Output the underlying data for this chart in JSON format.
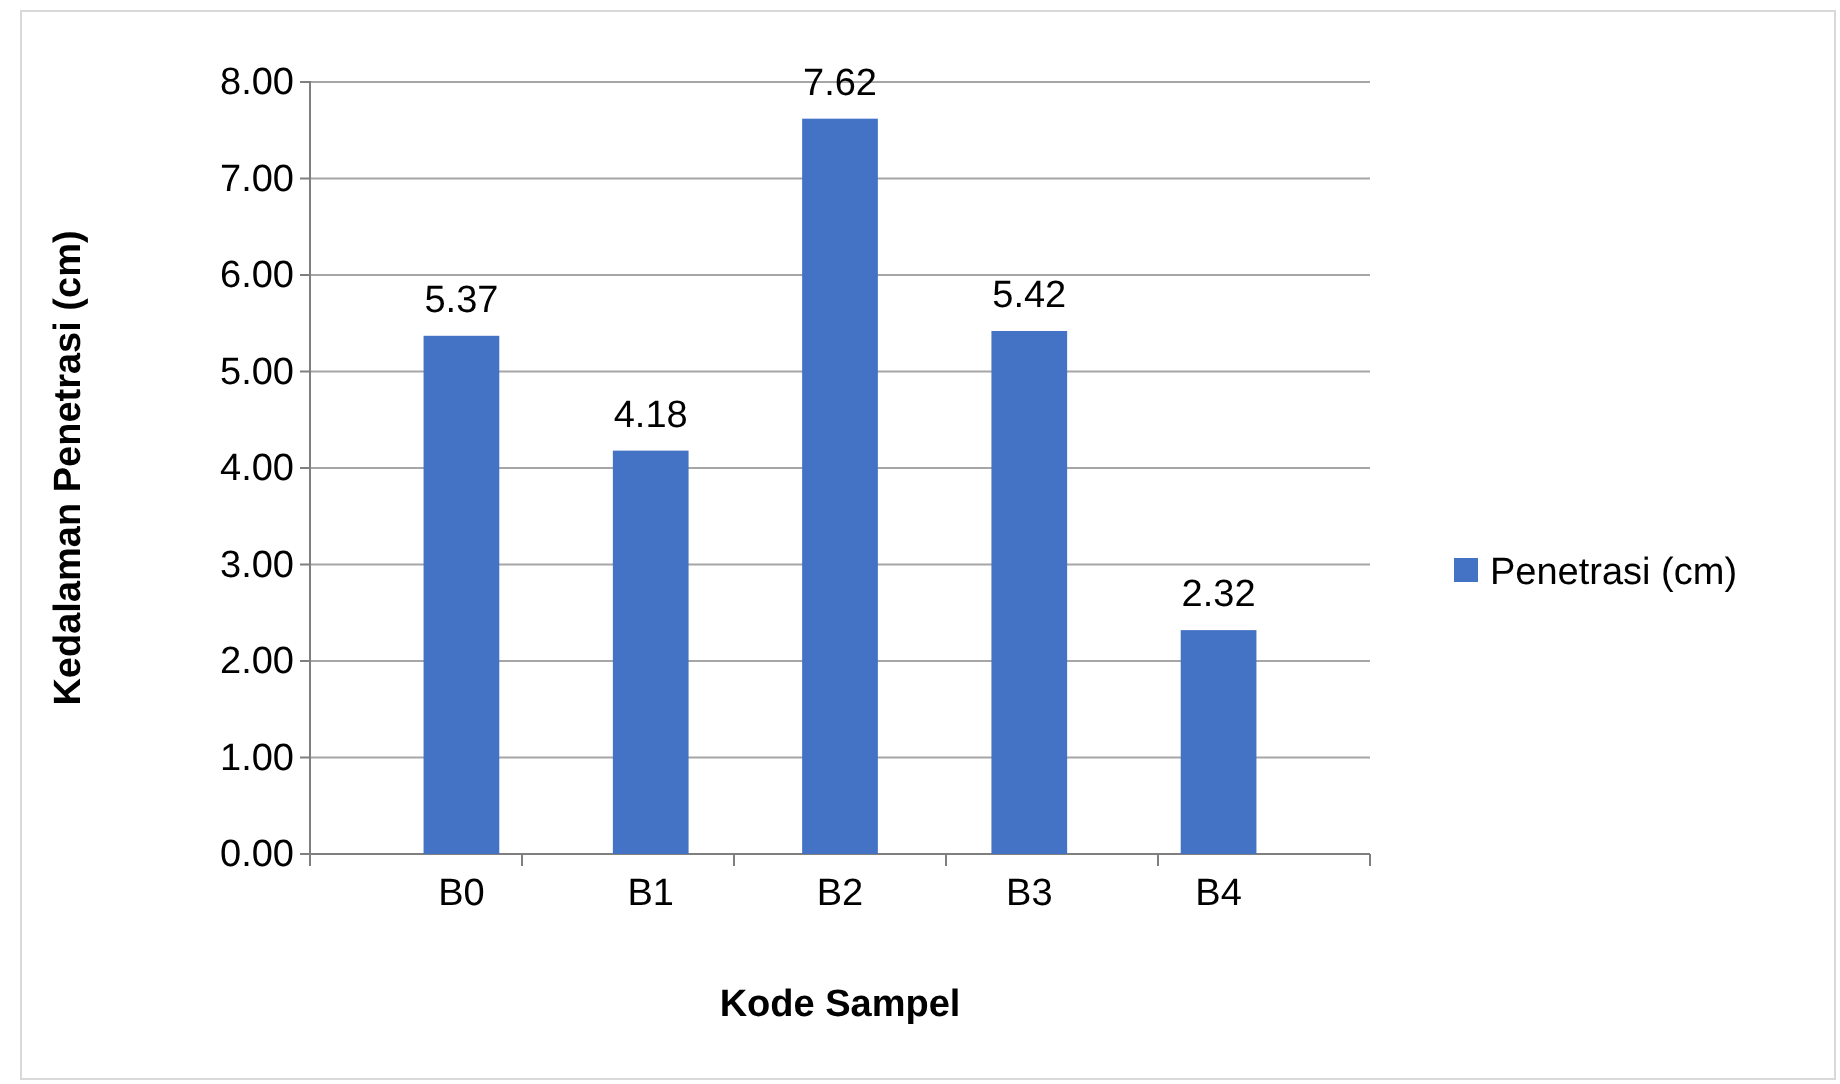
{
  "chart_data": {
    "type": "bar",
    "xlabel": "Kode Sampel",
    "ylabel": "Kedalaman Penetrasi (cm)",
    "categories": [
      "B0",
      "B1",
      "B2",
      "B3",
      "B4"
    ],
    "series": [
      {
        "name": "Penetrasi (cm)",
        "color": "#4472c4",
        "values": [
          5.37,
          4.18,
          7.62,
          5.42,
          2.32
        ]
      }
    ],
    "ylim": [
      0,
      8
    ],
    "yticks": [
      {
        "value": 0,
        "label": "0.00"
      },
      {
        "value": 1,
        "label": "1.00"
      },
      {
        "value": 2,
        "label": "2.00"
      },
      {
        "value": 3,
        "label": "3.00"
      },
      {
        "value": 4,
        "label": "4.00"
      },
      {
        "value": 5,
        "label": "5.00"
      },
      {
        "value": 6,
        "label": "6.00"
      },
      {
        "value": 7,
        "label": "7.00"
      },
      {
        "value": 8,
        "label": "8.00"
      }
    ],
    "grid": "y",
    "legend": "right",
    "data_labels": true
  }
}
